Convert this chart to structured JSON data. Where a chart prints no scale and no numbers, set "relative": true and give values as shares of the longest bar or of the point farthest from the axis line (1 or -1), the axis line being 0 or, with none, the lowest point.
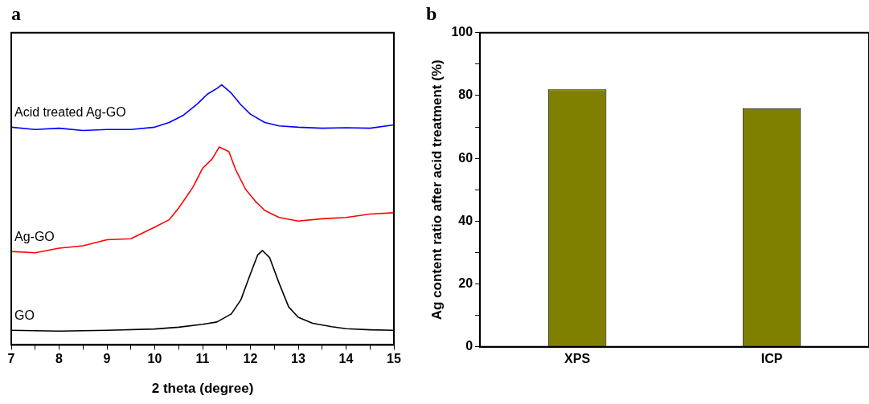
{
  "chart_data": [
    {
      "type": "line",
      "title": "a",
      "xlabel": "2 theta (degree)",
      "relative": true,
      "tick_labels": "x",
      "xlim": [
        7,
        15
      ],
      "xticks": [
        7,
        {
          "value": 7.5,
          "label": null
        },
        8,
        {
          "value": 8.5,
          "label": null
        },
        9,
        {
          "value": 9.5,
          "label": null
        },
        10,
        {
          "value": 10.5,
          "label": null
        },
        11,
        {
          "value": 11.5,
          "label": null
        },
        12,
        {
          "value": 12.5,
          "label": null
        },
        13,
        {
          "value": 13.5,
          "label": null
        },
        14,
        {
          "value": 14.5,
          "label": null
        },
        15
      ],
      "marker": "none",
      "line_style": "solid",
      "grid": false,
      "legend": false,
      "series": [
        {
          "name": "Acid treated Ag-GO",
          "color": "#0000ff",
          "x": [
            7,
            7.5,
            8,
            8.5,
            9,
            9.5,
            10,
            10.3,
            10.6,
            10.9,
            11.1,
            11.3,
            11.4,
            11.6,
            11.8,
            12.0,
            12.3,
            12.6,
            13,
            13.5,
            14,
            14.5,
            15
          ],
          "values": [
            0.837,
            0.828,
            0.833,
            0.824,
            0.828,
            0.828,
            0.837,
            0.855,
            0.883,
            0.928,
            0.964,
            0.986,
            1.0,
            0.968,
            0.923,
            0.887,
            0.855,
            0.842,
            0.837,
            0.833,
            0.835,
            0.833,
            0.846
          ]
        },
        {
          "name": "Ag-GO",
          "color": "#ff0000",
          "x": [
            7,
            7.5,
            8,
            8.5,
            9,
            9.5,
            10,
            10.3,
            10.5,
            10.8,
            11.0,
            11.2,
            11.35,
            11.55,
            11.7,
            11.9,
            12.1,
            12.3,
            12.6,
            13,
            13.5,
            14,
            14.5,
            15
          ],
          "values": [
            0.359,
            0.354,
            0.372,
            0.381,
            0.404,
            0.408,
            0.453,
            0.481,
            0.526,
            0.607,
            0.679,
            0.715,
            0.761,
            0.743,
            0.67,
            0.598,
            0.553,
            0.517,
            0.49,
            0.476,
            0.485,
            0.49,
            0.503,
            0.508
          ]
        },
        {
          "name": "GO",
          "color": "#000000",
          "x": [
            7,
            8,
            9,
            10,
            10.5,
            11,
            11.3,
            11.6,
            11.8,
            12.0,
            12.15,
            12.25,
            12.4,
            12.6,
            12.8,
            13.0,
            13.3,
            13.7,
            14,
            14.5,
            15
          ],
          "values": [
            0.056,
            0.053,
            0.056,
            0.061,
            0.068,
            0.079,
            0.088,
            0.119,
            0.173,
            0.273,
            0.345,
            0.363,
            0.336,
            0.237,
            0.146,
            0.106,
            0.083,
            0.07,
            0.062,
            0.058,
            0.056
          ]
        }
      ]
    },
    {
      "type": "bar",
      "title": "b",
      "ylabel": "Ag content ratio after acid treatment (%)",
      "categories": [
        "XPS",
        "ICP"
      ],
      "values": [
        82,
        76
      ],
      "color": "#808000",
      "ylim": [
        0,
        100
      ],
      "yticks": [
        0,
        {
          "value": 10,
          "label": null
        },
        20,
        {
          "value": 30,
          "label": null
        },
        40,
        {
          "value": 50,
          "label": null
        },
        60,
        {
          "value": 70,
          "label": null
        },
        80,
        {
          "value": 90,
          "label": null
        },
        100
      ],
      "grid": false,
      "legend": false
    }
  ]
}
